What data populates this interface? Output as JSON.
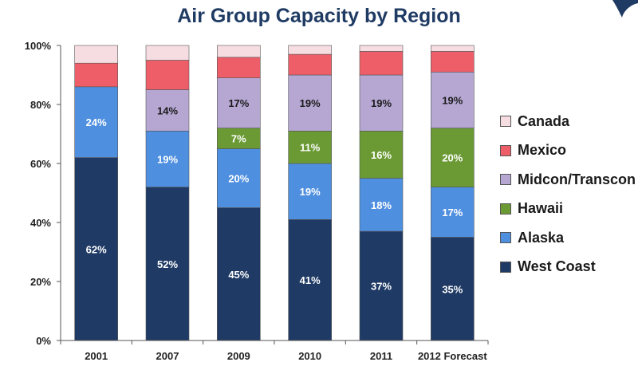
{
  "chart_data": {
    "type": "bar",
    "stacked": true,
    "title": "Air Group Capacity by Region",
    "xlabel": "",
    "ylabel": "",
    "ylim": [
      0,
      100
    ],
    "yticks": [
      "0%",
      "20%",
      "40%",
      "60%",
      "80%",
      "100%"
    ],
    "grid": false,
    "legend_position": "right",
    "categories": [
      "2001",
      "2007",
      "2009",
      "2010",
      "2011",
      "2012 Forecast"
    ],
    "series": [
      {
        "name": "West Coast",
        "color": "#1f3a64",
        "values": [
          62,
          52,
          45,
          41,
          37,
          35
        ],
        "labels": [
          "62%",
          "52%",
          "45%",
          "41%",
          "37%",
          "35%"
        ],
        "label_color": "#ffffff"
      },
      {
        "name": "Alaska",
        "color": "#4f8fdf",
        "values": [
          24,
          19,
          20,
          19,
          18,
          17
        ],
        "labels": [
          "24%",
          "19%",
          "20%",
          "19%",
          "18%",
          "17%"
        ],
        "label_color": "#ffffff"
      },
      {
        "name": "Hawaii",
        "color": "#6b9a34",
        "values": [
          0,
          0,
          7,
          11,
          16,
          20
        ],
        "labels": [
          "",
          "",
          "7%",
          "11%",
          "16%",
          "20%"
        ],
        "label_color": "#ffffff"
      },
      {
        "name": "Midcon/Transcon",
        "color": "#b5a7d2",
        "values": [
          0,
          14,
          17,
          19,
          19,
          19
        ],
        "labels": [
          "",
          "14%",
          "17%",
          "19%",
          "19%",
          "19%"
        ],
        "label_color": "#1a1a1a"
      },
      {
        "name": "Mexico",
        "color": "#ee5e68",
        "values": [
          8,
          10,
          7,
          7,
          8,
          7
        ],
        "labels": [
          "",
          "",
          "",
          "",
          "",
          ""
        ],
        "label_color": "#1a1a1a"
      },
      {
        "name": "Canada",
        "color": "#f6dde1",
        "values": [
          6,
          5,
          4,
          3,
          2,
          2
        ],
        "labels": [
          "",
          "",
          "",
          "",
          "",
          ""
        ],
        "label_color": "#1a1a1a"
      }
    ],
    "legend_order": [
      "Canada",
      "Mexico",
      "Midcon/Transcon",
      "Hawaii",
      "Alaska",
      "West Coast"
    ]
  }
}
